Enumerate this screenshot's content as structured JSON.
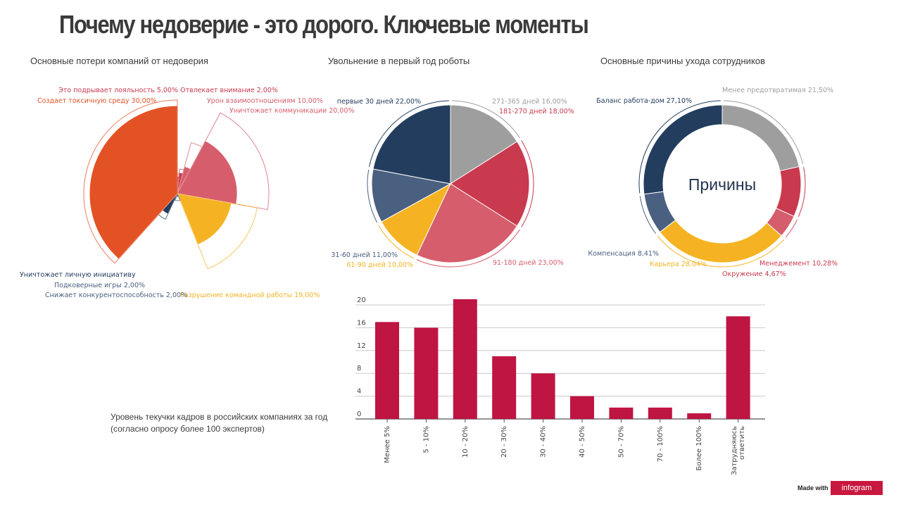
{
  "title": "Почему недоверие - это дорого. Ключевые моменты",
  "colors": {
    "navy": "#233d5e",
    "orange": "#e35225",
    "pink": "#d65d6b",
    "red": "#c93a4f",
    "yellow": "#f5b324",
    "gray": "#9e9e9e",
    "steel": "#4a6080",
    "bar": "#bf1543"
  },
  "chart_data": [
    {
      "type": "pie",
      "variant": "polar-area",
      "title": "Основные потери компаний от недоверия",
      "slices": [
        {
          "label": "Это подрывает лояльность 5,00%",
          "value": 5.0
        },
        {
          "label": "Отвлекает внимание 2,00%",
          "value": 2.0
        },
        {
          "label": "Урон взаимоотношениям 10,00%",
          "value": 10.0
        },
        {
          "label": "Уничтожает коммуникации 20,00%",
          "value": 20.0
        },
        {
          "label": "Разрушение командной работы 19,00%",
          "value": 19.0
        },
        {
          "label": "Снижает конкурентоспособность 2,00%",
          "value": 2.0
        },
        {
          "label": "Подковерные игры 2,00%",
          "value": 2.0
        },
        {
          "label": "Уничтожает личную инициативу",
          "value": 10.0
        },
        {
          "label": "Создает токсичную среду 30,00%",
          "value": 30.0
        }
      ]
    },
    {
      "type": "pie",
      "title": "Увольнение в первый год роботы",
      "slices": [
        {
          "label": "271-365 дней 16,00%",
          "value": 16.0
        },
        {
          "label": "181-270 дней 18,00%",
          "value": 18.0
        },
        {
          "label": "91-180 дней 23,00%",
          "value": 23.0
        },
        {
          "label": "61-90 дней 10,00%",
          "value": 10.0
        },
        {
          "label": "31-60 дней 11,00%",
          "value": 11.0
        },
        {
          "label": "первые 30 дней 22,00%",
          "value": 22.0
        }
      ]
    },
    {
      "type": "pie",
      "variant": "donut",
      "title": "Основные причины ухода сотрудников",
      "center_label": "Причины",
      "slices": [
        {
          "label": "Менее предотвратимая 21,50%",
          "value": 21.5
        },
        {
          "label": "Менеджемент 10,28%",
          "value": 10.28
        },
        {
          "label": "Окружение 4,67%",
          "value": 4.67
        },
        {
          "label": "Карьера 28,04%",
          "value": 28.04
        },
        {
          "label": "Компенсация 8,41%",
          "value": 8.41
        },
        {
          "label": "Баланс работа-дом 27,10%",
          "value": 27.1
        }
      ]
    },
    {
      "type": "bar",
      "categories": [
        "Менее 5%",
        "5 - 10%",
        "10 - 20%",
        "20 - 30%",
        "30 - 40%",
        "40 - 50%",
        "50 - 70%",
        "70 - 100%",
        "Более 100%",
        "Затрудняюсь ответить"
      ],
      "category_lines": [
        [
          "Менее 5%"
        ],
        [
          "5 - 10%"
        ],
        [
          "10 - 20%"
        ],
        [
          "20 - 30%"
        ],
        [
          "30 - 40%"
        ],
        [
          "40 - 50%"
        ],
        [
          "50 - 70%"
        ],
        [
          "70 - 100%"
        ],
        [
          "Более 100%"
        ],
        [
          "Затрудняюсь",
          "ответить"
        ]
      ],
      "values": [
        17,
        16,
        21,
        11,
        8,
        4,
        2,
        2,
        1,
        18
      ],
      "yticks": [
        0,
        4,
        8,
        12,
        16,
        20
      ],
      "ylim": [
        0,
        20
      ],
      "grid": true,
      "note_lines": [
        "Уровень текучки кадров в российских компаниях за год",
        "(согласно опросу более 100 экспертов)"
      ]
    }
  ]
}
